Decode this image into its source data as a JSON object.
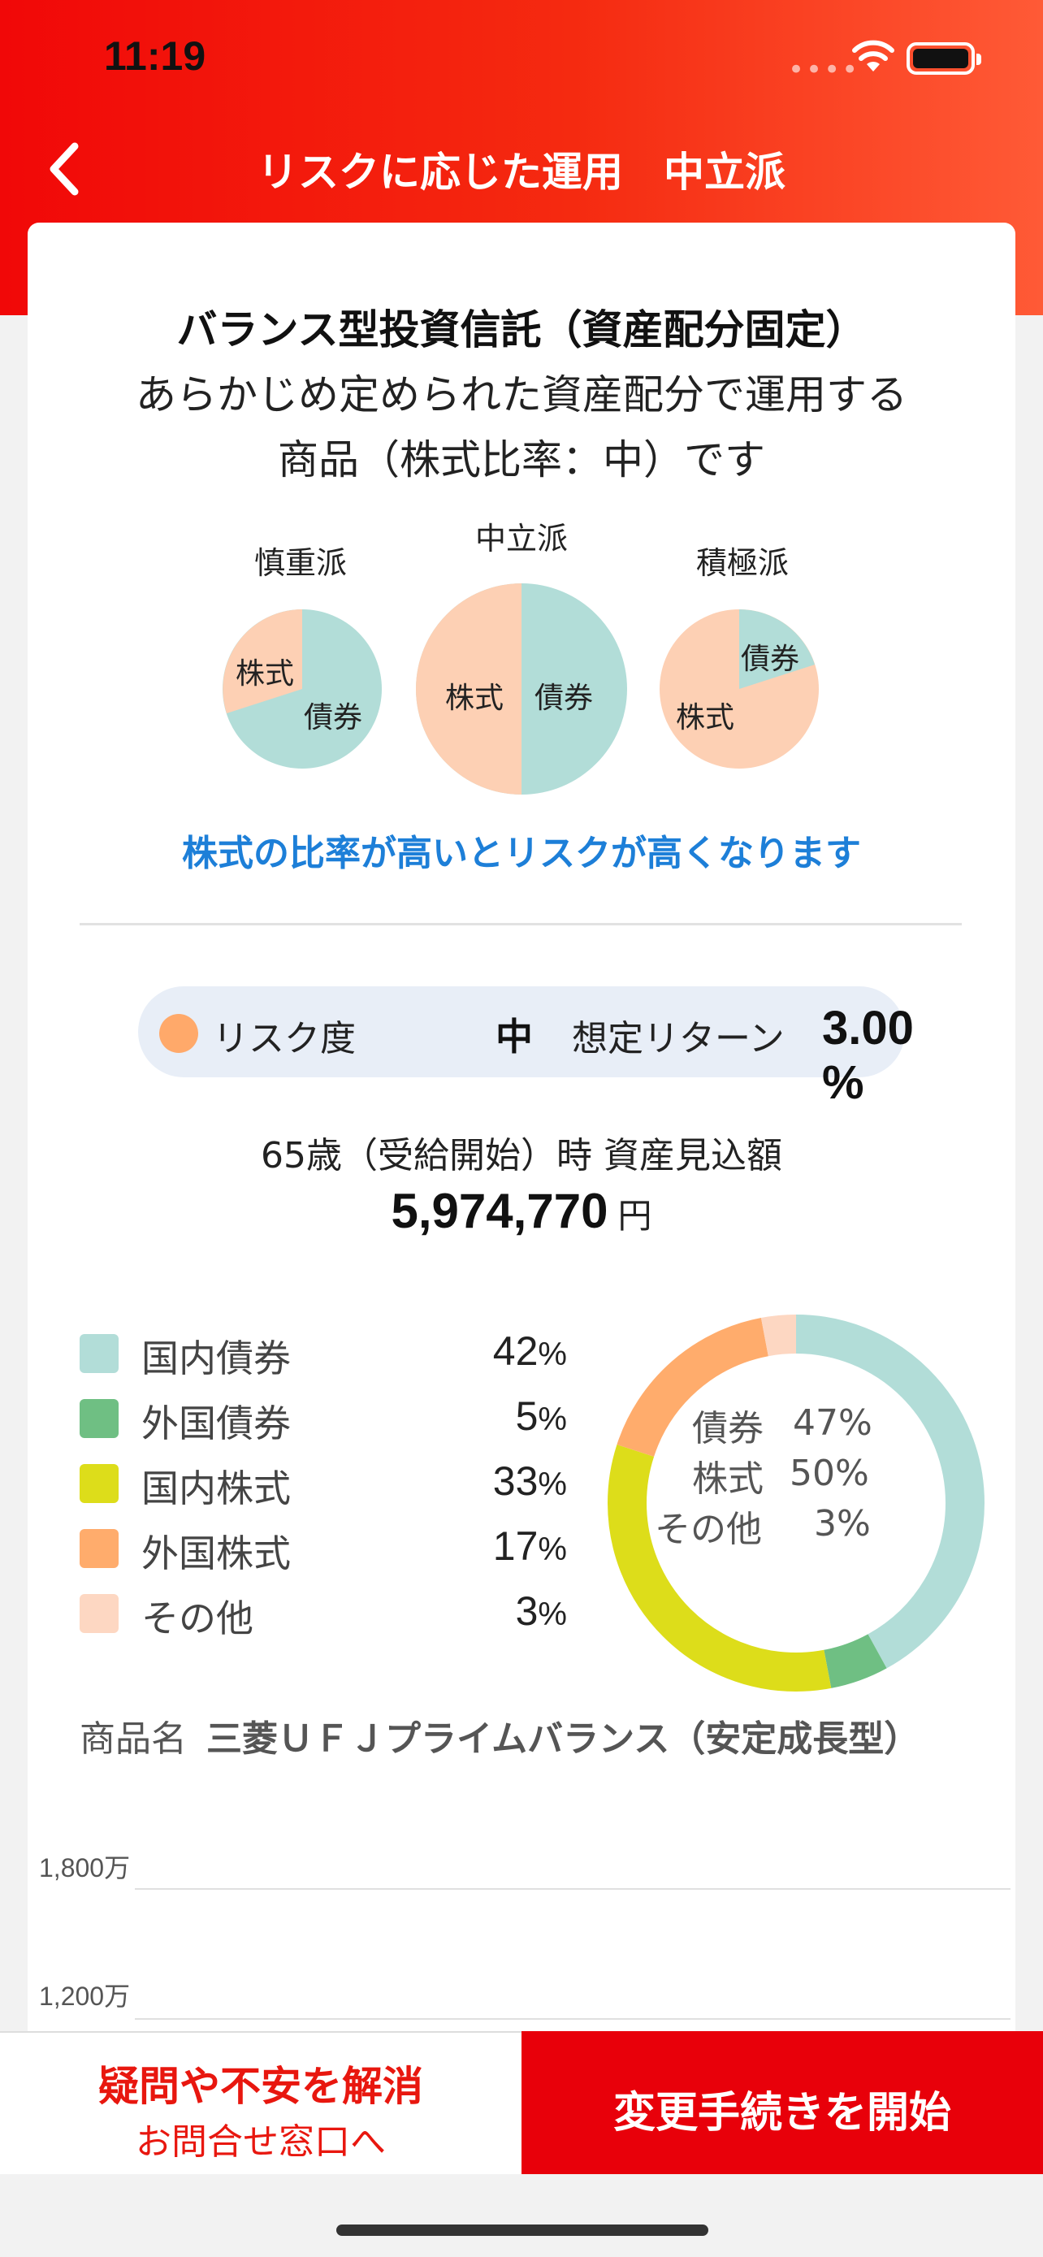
{
  "status_bar": {
    "time": "11:19"
  },
  "nav": {
    "title": "リスクに応じた運用　中立派"
  },
  "intro": {
    "title": "バランス型投資信託（資産配分固定）",
    "desc_line1": "あらかじめ定められた資産配分で運用する",
    "desc_line2": "商品（株式比率：中）です"
  },
  "pies": [
    {
      "label": "慎重派",
      "stock_label": "株式",
      "bond_label": "債券"
    },
    {
      "label": "中立派",
      "stock_label": "株式",
      "bond_label": "債券"
    },
    {
      "label": "積極派",
      "stock_label": "株式",
      "bond_label": "債券"
    }
  ],
  "warning": "株式の比率が高いとリスクが高くなります",
  "risk": {
    "label": "リスク度",
    "value": "中",
    "return_label": "想定リターン",
    "return_value": "3.00 %",
    "dot_color": "#ffa96a"
  },
  "projection": {
    "label": "65歳（受給開始）時 資産見込額",
    "amount": "5,974,770",
    "unit": "円"
  },
  "allocation": [
    {
      "name": "国内債券",
      "value": "42",
      "unit": "%",
      "color": "#b2ddd8"
    },
    {
      "name": "外国債券",
      "value": "5",
      "unit": "%",
      "color": "#6fbf83"
    },
    {
      "name": "国内株式",
      "value": "33",
      "unit": "%",
      "color": "#dddd1a"
    },
    {
      "name": "外国株式",
      "value": "17",
      "unit": "%",
      "color": "#ffac6c"
    },
    {
      "name": "その他",
      "value": "3",
      "unit": "%",
      "color": "#fdd7c2"
    }
  ],
  "donut_summary": [
    {
      "name": "債券",
      "value": "47%"
    },
    {
      "name": "株式",
      "value": "50%"
    },
    {
      "name": "その他",
      "value": "3%"
    }
  ],
  "product": {
    "label": "商品名",
    "name": "三菱ＵＦＪプライムバランス（安定成長型）"
  },
  "growth_chart": {
    "y_ticks": [
      "1,800万",
      "1,200万"
    ]
  },
  "buttons": {
    "inquiry_line1": "疑問や不安を解消",
    "inquiry_line2": "お問合せ窓口へ",
    "start": "変更手続きを開始"
  }
}
